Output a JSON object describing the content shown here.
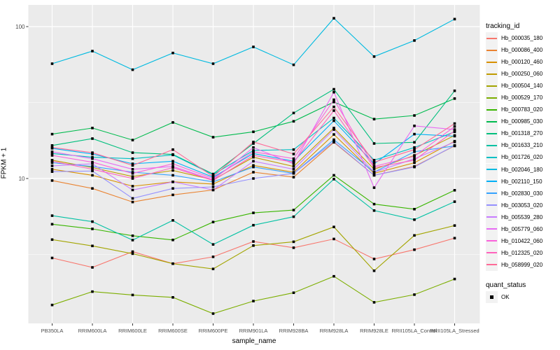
{
  "figure": {
    "background": "#FFFFFF",
    "panel_background": "#EBEBEB",
    "grid_color": "#FFFFFF",
    "tick_mark_color": "#333333",
    "tick_label_color": "#4D4D4D",
    "legend_key_background": "#F2F2F2",
    "point_color": "#000000"
  },
  "legend_quant": {
    "title": "quant_status",
    "items": [
      {
        "label": "OK",
        "marker": "black-square",
        "color": "#000000"
      }
    ]
  },
  "chart_data": {
    "type": "line",
    "title": "",
    "xlabel": "sample_name",
    "ylabel": "FPKM + 1",
    "legend_title": "tracking_id",
    "legend_position": "right",
    "grid": true,
    "y_scale": "log10",
    "y_ticks": [
      10,
      100
    ],
    "y_minor_gridlines": [
      3.162,
      31.62
    ],
    "ylim_approx": [
      1.1,
      139
    ],
    "point_marker": "small-black-square",
    "x_categories": [
      "PB350LA",
      "RRIM600LA",
      "RRIM600LE",
      "RRIM600SE",
      "RRIM600PE",
      "RRIM901LA",
      "RRIM928BA",
      "RRIM928LA",
      "RRIM928LE",
      "RRII105LA_Control",
      "RRII105LA_Stressed"
    ],
    "series": [
      {
        "name": "Hb_000035_180",
        "color": "#F8766D",
        "values": [
          3.0,
          2.6,
          3.3,
          2.75,
          3.05,
          3.85,
          3.5,
          4.0,
          2.95,
          3.4,
          4.05
        ]
      },
      {
        "name": "Hb_000086_400",
        "color": "#EA8331",
        "values": [
          9.7,
          8.6,
          7.0,
          7.8,
          8.4,
          11.0,
          10.2,
          17.3,
          10.5,
          12.0,
          16.4
        ]
      },
      {
        "name": "Hb_000120_460",
        "color": "#D89000",
        "values": [
          11.5,
          10.5,
          8.9,
          9.5,
          9.2,
          12.2,
          11.0,
          19.5,
          10.8,
          12.7,
          17.6
        ]
      },
      {
        "name": "Hb_000250_060",
        "color": "#C09B00",
        "values": [
          13.2,
          11.8,
          10.3,
          11.3,
          9.8,
          13.8,
          12.0,
          21.5,
          11.5,
          14.2,
          19.2
        ]
      },
      {
        "name": "Hb_000504_140",
        "color": "#A3A500",
        "values": [
          3.96,
          3.6,
          3.2,
          2.75,
          2.54,
          3.62,
          3.83,
          4.8,
          2.47,
          4.22,
          4.9
        ]
      },
      {
        "name": "Hb_000529_170",
        "color": "#7CAE00",
        "values": [
          1.47,
          1.8,
          1.71,
          1.65,
          1.29,
          1.56,
          1.77,
          2.27,
          1.53,
          1.72,
          2.18
        ]
      },
      {
        "name": "Hb_000783_020",
        "color": "#39B600",
        "values": [
          5.0,
          4.66,
          4.2,
          3.94,
          5.17,
          5.94,
          6.2,
          10.5,
          6.78,
          6.28,
          8.37
        ]
      },
      {
        "name": "Hb_000985_030",
        "color": "#00BB4E",
        "values": [
          19.6,
          21.5,
          17.9,
          23.4,
          18.7,
          20.3,
          23.8,
          31.9,
          24.6,
          26.0,
          33.6
        ]
      },
      {
        "name": "Hb_001318_270",
        "color": "#00BF7D",
        "values": [
          16.5,
          18.3,
          14.8,
          14.4,
          10.7,
          17.0,
          27.0,
          38.7,
          17.0,
          17.3,
          37.8
        ]
      },
      {
        "name": "Hb_001633_210",
        "color": "#00C1A3",
        "values": [
          5.69,
          5.2,
          3.93,
          5.3,
          3.68,
          4.93,
          5.6,
          9.9,
          6.15,
          5.36,
          7.04
        ]
      },
      {
        "name": "Hb_001726_020",
        "color": "#00BFC4",
        "values": [
          14.6,
          13.8,
          13.5,
          14.3,
          10.6,
          15.3,
          15.5,
          25.0,
          13.2,
          16.0,
          20.3
        ]
      },
      {
        "name": "Hb_002046_180",
        "color": "#00BAE0",
        "values": [
          57.0,
          69.0,
          52.0,
          67.0,
          57.0,
          73.5,
          56.0,
          113.5,
          63.5,
          81.0,
          112.0
        ]
      },
      {
        "name": "Hb_002110_150",
        "color": "#00B0F6",
        "values": [
          15.8,
          14.5,
          12.5,
          13.0,
          10.2,
          14.6,
          13.0,
          24.0,
          12.5,
          19.6,
          19.0
        ]
      },
      {
        "name": "Hb_002830_030",
        "color": "#35A2FF",
        "values": [
          12.7,
          12.0,
          11.0,
          10.5,
          9.5,
          11.9,
          10.8,
          18.0,
          11.0,
          15.0,
          16.4
        ]
      },
      {
        "name": "Hb_003053_020",
        "color": "#9590FF",
        "values": [
          11.1,
          11.2,
          7.4,
          8.6,
          8.8,
          10.0,
          10.8,
          17.5,
          10.5,
          11.9,
          16.5
        ]
      },
      {
        "name": "Hb_005539_280",
        "color": "#C77CFF",
        "values": [
          12.1,
          12.5,
          8.4,
          9.5,
          8.4,
          13.0,
          11.5,
          21.0,
          11.0,
          13.5,
          17.4
        ]
      },
      {
        "name": "Hb_005779_060",
        "color": "#E76BF3",
        "values": [
          15.0,
          13.5,
          11.5,
          12.0,
          9.8,
          16.0,
          12.5,
          37.0,
          8.7,
          22.2,
          21.0
        ]
      },
      {
        "name": "Hb_010422_060",
        "color": "#FA62DB",
        "values": [
          14.2,
          12.8,
          10.8,
          12.5,
          10.0,
          15.0,
          13.5,
          33.0,
          12.0,
          14.0,
          22.0
        ]
      },
      {
        "name": "Hb_012325_020",
        "color": "#FF62BC",
        "values": [
          13.0,
          11.5,
          10.0,
          11.8,
          9.7,
          14.2,
          12.8,
          28.0,
          11.8,
          13.2,
          20.6
        ]
      },
      {
        "name": "Hb_058999_020",
        "color": "#FF6A98",
        "values": [
          16.0,
          14.8,
          12.2,
          15.5,
          10.3,
          17.4,
          14.5,
          29.6,
          12.8,
          15.5,
          23.0
        ]
      }
    ]
  }
}
